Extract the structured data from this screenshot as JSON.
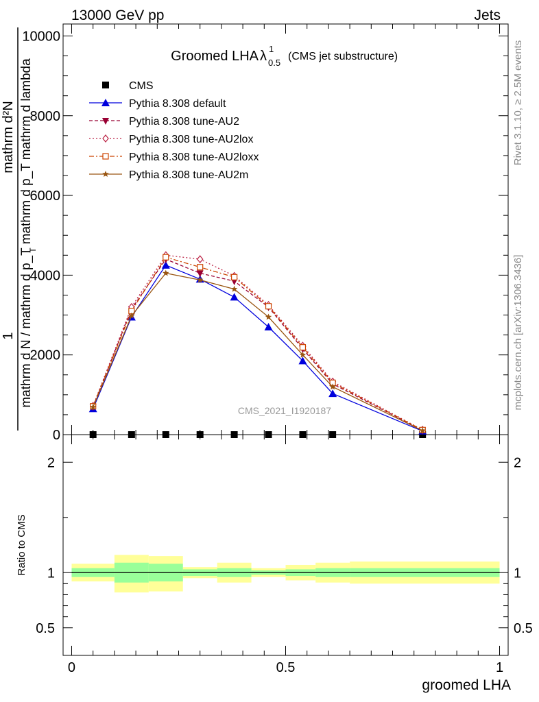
{
  "header": {
    "left": "13000 GeV pp",
    "right": "Jets"
  },
  "side_labels": {
    "rivet": "Rivet 3.1.10, ≥ 2.5M events",
    "mcplots": "mcplots.cern.ch [arXiv:1306.3436]"
  },
  "watermark": "CMS_2021_I1920187",
  "chart_data": [
    {
      "type": "line",
      "title": "Groomed LHA",
      "title_symbol": "λ",
      "title_sup": "1",
      "title_sub": "0.5",
      "title_suffix": "(CMS jet substructure)",
      "ylabel_num": "1",
      "ylabel_num_b": "mathrm d²N",
      "ylabel_den": "mathrm d N / mathrm d p_T mathrm d p_T mathrm d lambda",
      "ylabel_den_sub": "T",
      "ylim": [
        0,
        10300
      ],
      "y_ticks": [
        0,
        2000,
        4000,
        6000,
        8000,
        10000
      ],
      "y_tick_labels": [
        "0",
        "2000",
        "4000",
        "6000",
        "8000",
        "10000"
      ],
      "xlim": [
        -0.02,
        1.02
      ],
      "x": [
        0.05,
        0.14,
        0.22,
        0.3,
        0.38,
        0.46,
        0.54,
        0.61,
        0.82
      ],
      "series": [
        {
          "name": "CMS",
          "color": "#000000",
          "marker": "square",
          "dash": "",
          "values": [
            0,
            0,
            0,
            0,
            0,
            0,
            0,
            0,
            0
          ]
        },
        {
          "name": "Pythia 8.308 default",
          "color": "#0000dd",
          "marker": "triangle-up",
          "dash": "",
          "values": [
            650,
            2950,
            4250,
            3900,
            3450,
            2700,
            1850,
            1030,
            90
          ]
        },
        {
          "name": "Pythia 8.308 tune-AU2",
          "color": "#990033",
          "marker": "triangle-down",
          "dash": "5,3",
          "values": [
            700,
            3150,
            4400,
            4050,
            3850,
            3200,
            2150,
            1270,
            110
          ]
        },
        {
          "name": "Pythia 8.308 tune-AU2lox",
          "color": "#bb2244",
          "marker": "diamond",
          "dash": "2,3",
          "values": [
            720,
            3200,
            4500,
            4400,
            3980,
            3250,
            2230,
            1330,
            120
          ]
        },
        {
          "name": "Pythia 8.308 tune-AU2loxx",
          "color": "#cc4400",
          "marker": "square-open",
          "dash": "7,3,2,3",
          "values": [
            710,
            3100,
            4450,
            4200,
            3950,
            3220,
            2190,
            1300,
            115
          ]
        },
        {
          "name": "Pythia 8.308 tune-AU2m",
          "color": "#995511",
          "marker": "star",
          "dash": "",
          "values": [
            690,
            2980,
            4050,
            3880,
            3650,
            2950,
            2000,
            1200,
            100
          ]
        }
      ]
    },
    {
      "type": "area",
      "ylabel": "Ratio to CMS",
      "xlabel": "groomed LHA",
      "xlim": [
        -0.02,
        1.02
      ],
      "x_ticks": [
        0,
        0.5,
        1
      ],
      "x_tick_labels": [
        "0",
        "0.5",
        "1"
      ],
      "ylim": [
        0.25,
        2.25
      ],
      "y_ticks": [
        0.5,
        1,
        2
      ],
      "y_tick_labels": [
        "0.5",
        "1",
        "2"
      ],
      "reference": 1,
      "bins": [
        {
          "x0": 0.0,
          "x1": 0.1,
          "green": [
            0.96,
            1.04
          ],
          "yellow": [
            0.92,
            1.08
          ]
        },
        {
          "x0": 0.1,
          "x1": 0.18,
          "green": [
            0.91,
            1.09
          ],
          "yellow": [
            0.82,
            1.16
          ]
        },
        {
          "x0": 0.18,
          "x1": 0.26,
          "green": [
            0.92,
            1.08
          ],
          "yellow": [
            0.83,
            1.15
          ]
        },
        {
          "x0": 0.26,
          "x1": 0.34,
          "green": [
            0.97,
            1.03
          ],
          "yellow": [
            0.95,
            1.05
          ]
        },
        {
          "x0": 0.34,
          "x1": 0.42,
          "green": [
            0.96,
            1.04
          ],
          "yellow": [
            0.91,
            1.09
          ]
        },
        {
          "x0": 0.42,
          "x1": 0.5,
          "green": [
            0.98,
            1.02
          ],
          "yellow": [
            0.96,
            1.04
          ]
        },
        {
          "x0": 0.5,
          "x1": 0.57,
          "green": [
            0.97,
            1.03
          ],
          "yellow": [
            0.93,
            1.07
          ]
        },
        {
          "x0": 0.57,
          "x1": 0.65,
          "green": [
            0.96,
            1.04
          ],
          "yellow": [
            0.91,
            1.09
          ]
        },
        {
          "x0": 0.65,
          "x1": 1.0,
          "green": [
            0.96,
            1.04
          ],
          "yellow": [
            0.9,
            1.1
          ]
        }
      ]
    }
  ]
}
